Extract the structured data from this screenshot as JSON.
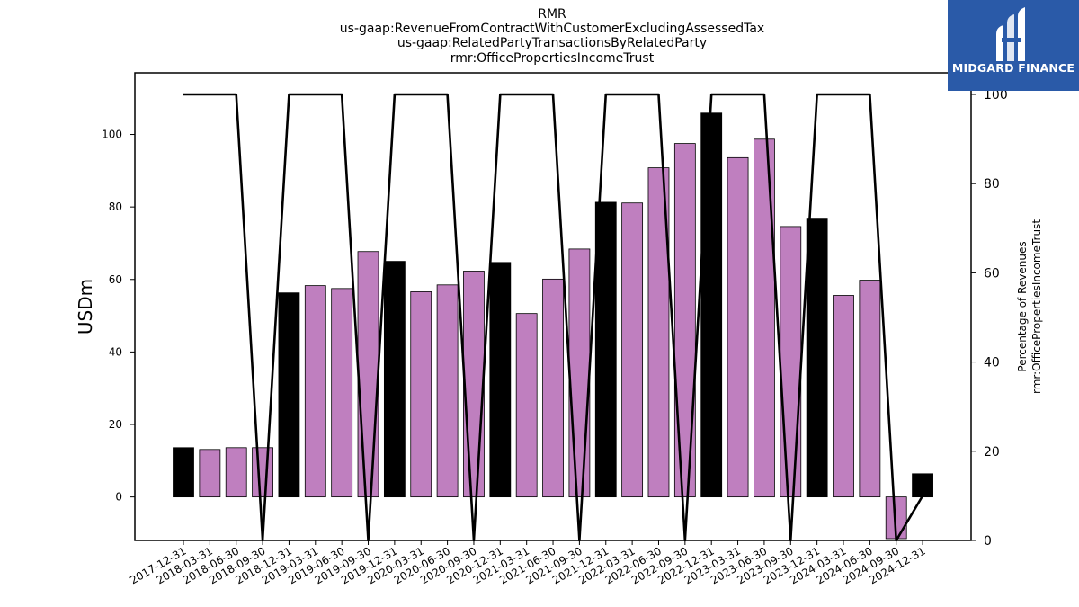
{
  "chart_data": {
    "type": "bar+line",
    "title_lines": [
      "RMR",
      "us-gaap:RevenueFromContractWithCustomerExcludingAssessedTax",
      "us-gaap:RelatedPartyTransactionsByRelatedParty",
      "rmr:OfficePropertiesIncomeTrust"
    ],
    "ylabel": "USDm",
    "ylabel_right": [
      "Percentage of Revenues",
      "rmr:OfficePropertiesIncomeTrust"
    ],
    "ylim": [
      -12,
      117
    ],
    "ylim_right": [
      0,
      100
    ],
    "yticks": [
      0,
      20,
      40,
      60,
      80,
      100
    ],
    "yticks_right": [
      0,
      20,
      40,
      60,
      80,
      100
    ],
    "categories": [
      "2017-12-31",
      "2018-03-31",
      "2018-06-30",
      "2018-09-30",
      "2018-12-31",
      "2019-03-31",
      "2019-06-30",
      "2019-09-30",
      "2019-12-31",
      "2020-03-31",
      "2020-06-30",
      "2020-09-30",
      "2020-12-31",
      "2021-03-31",
      "2021-06-30",
      "2021-09-30",
      "2021-12-31",
      "2022-03-31",
      "2022-06-30",
      "2022-09-30",
      "2022-12-31",
      "2023-03-31",
      "2023-06-30",
      "2023-09-30",
      "2023-12-31",
      "2024-03-31",
      "2024-06-30",
      "2024-09-30",
      "2024-12-31"
    ],
    "bars": {
      "values": [
        13.6,
        13.1,
        13.6,
        13.6,
        56.3,
        58.3,
        57.5,
        67.7,
        65.0,
        56.6,
        58.5,
        62.3,
        64.7,
        50.6,
        60.1,
        68.4,
        81.3,
        81.1,
        90.8,
        97.5,
        105.9,
        93.6,
        98.7,
        74.6,
        null,
        55.6,
        59.8,
        -11.5,
        6.4
      ],
      "colors": [
        "#000000",
        "#bf7fbf",
        "#bf7fbf",
        "#bf7fbf",
        "#000000",
        "#bf7fbf",
        "#bf7fbf",
        "#bf7fbf",
        "#000000",
        "#bf7fbf",
        "#bf7fbf",
        "#bf7fbf",
        "#000000",
        "#bf7fbf",
        "#bf7fbf",
        "#bf7fbf",
        "#000000",
        "#bf7fbf",
        "#bf7fbf",
        "#bf7fbf",
        "#000000",
        "#bf7fbf",
        "#bf7fbf",
        "#bf7fbf",
        "#000000",
        "#bf7fbf",
        "#bf7fbf",
        "#bf7fbf",
        "#000000"
      ],
      "extra": {
        "index": 24,
        "value": 76.9
      }
    },
    "line": {
      "color": "#000000",
      "x_indices": [
        0,
        2,
        3,
        4,
        6,
        7,
        8,
        10,
        11,
        12,
        14,
        15,
        16,
        18,
        19,
        20,
        22,
        23,
        24,
        26,
        27,
        28
      ],
      "values": [
        100,
        100,
        0,
        100,
        100,
        0,
        100,
        100,
        0,
        100,
        100,
        0,
        100,
        100,
        0,
        100,
        100,
        0,
        100,
        100,
        0,
        10
      ]
    },
    "grid": false,
    "legend": "none"
  },
  "logo": {
    "text": "MIDGARD FINANCE",
    "bg_color": "#2a5aa8"
  }
}
